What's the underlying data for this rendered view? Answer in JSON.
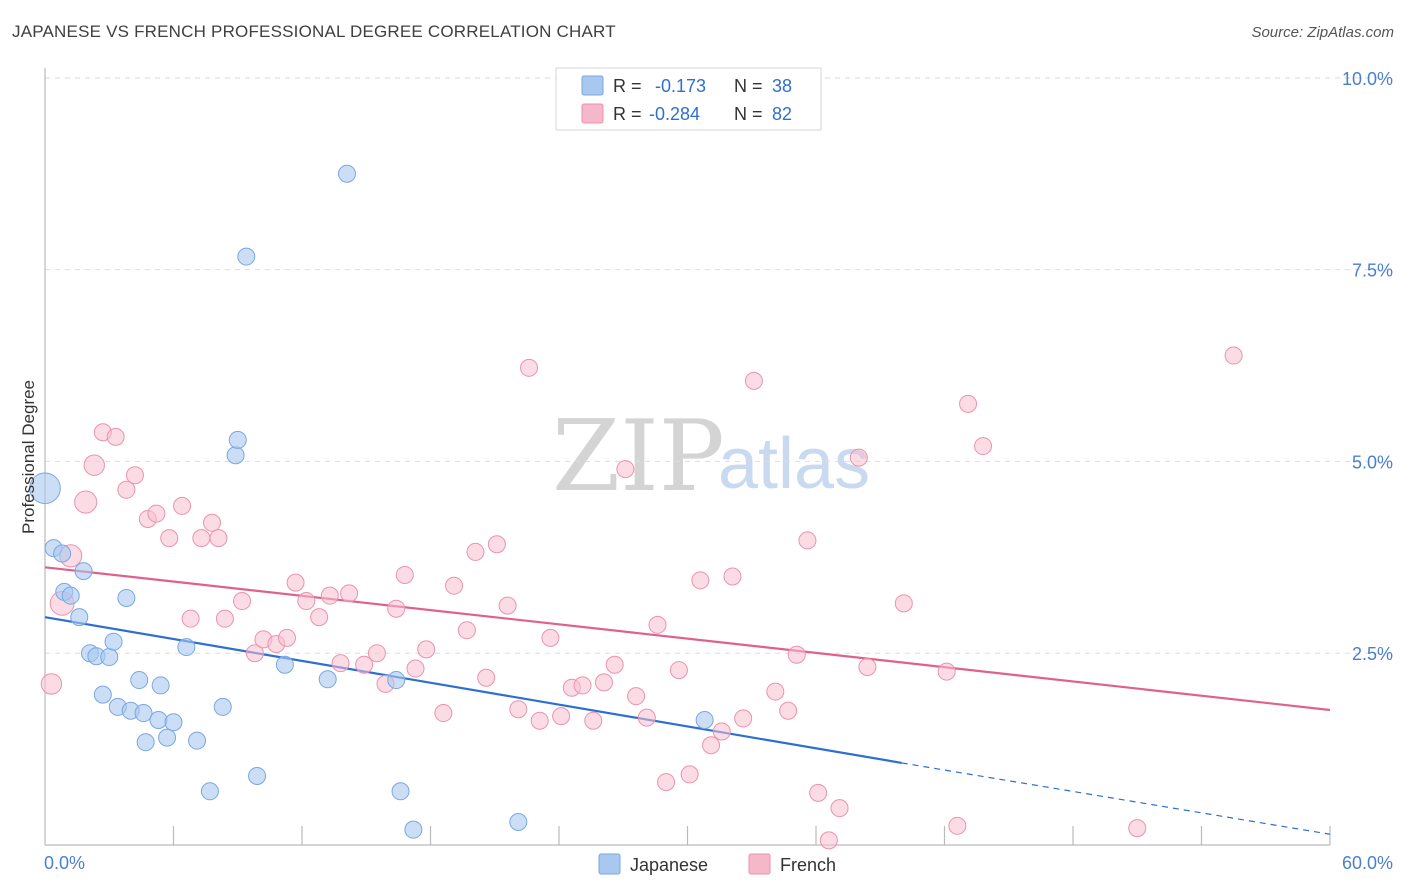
{
  "header": {
    "title": "JAPANESE VS FRENCH PROFESSIONAL DEGREE CORRELATION CHART",
    "source": "Source: ZipAtlas.com"
  },
  "watermark": {
    "part1": "ZIP",
    "part2": "atlas"
  },
  "legend": {
    "rows": [
      {
        "r_label": "R =",
        "r_value": "-0.173",
        "n_label": "N =",
        "n_value": "38",
        "color": "#a9c8f0"
      },
      {
        "r_label": "R =",
        "r_value": "-0.284",
        "n_label": "N =",
        "n_value": "82",
        "color": "#f5b8cb"
      }
    ]
  },
  "colors": {
    "japanese_fill": "#a9c8f0",
    "japanese_stroke": "#7aa7e0",
    "japanese_line": "#2c6fd1",
    "french_fill": "#f7bfd0",
    "french_stroke": "#eb92b0",
    "french_line": "#e0608d",
    "tick_text": "#4a7fd0",
    "grid": "#dddddd"
  },
  "chart_data": {
    "type": "scatter",
    "title": "JAPANESE VS FRENCH PROFESSIONAL DEGREE CORRELATION CHART",
    "xlabel": "",
    "ylabel": "Professional Degree",
    "xlim": [
      0,
      60
    ],
    "ylim": [
      0,
      10.5
    ],
    "x_tick_labels": [
      "0.0%",
      "60.0%"
    ],
    "y_ticks": [
      2.5,
      5.0,
      7.5,
      10.0
    ],
    "y_tick_labels": [
      "2.5%",
      "5.0%",
      "7.5%",
      "10.0%"
    ],
    "grid": true,
    "legend_position": "top-center",
    "series": [
      {
        "name": "Japanese",
        "r": -0.173,
        "n": 38,
        "trend": {
          "x0": 0,
          "y0": 2.97,
          "x1_solid": 40,
          "y1_solid": 1.07,
          "x1_dashed": 60,
          "y1_dashed": 0.14
        },
        "points": [
          [
            0,
            4.65,
            18
          ],
          [
            0.4,
            3.87,
            10
          ],
          [
            0.8,
            3.8,
            10
          ],
          [
            0.9,
            3.3,
            10
          ],
          [
            1.2,
            3.25,
            10
          ],
          [
            1.6,
            2.97,
            10
          ],
          [
            1.8,
            3.57,
            10
          ],
          [
            2.1,
            2.5,
            10
          ],
          [
            2.4,
            2.46,
            10
          ],
          [
            2.7,
            1.96,
            10
          ],
          [
            3.0,
            2.45,
            10
          ],
          [
            3.2,
            2.65,
            10
          ],
          [
            3.4,
            1.8,
            10
          ],
          [
            3.8,
            3.22,
            10
          ],
          [
            4.0,
            1.75,
            10
          ],
          [
            4.4,
            2.15,
            10
          ],
          [
            4.6,
            1.72,
            10
          ],
          [
            4.7,
            1.34,
            10
          ],
          [
            5.3,
            1.63,
            10
          ],
          [
            5.4,
            2.08,
            10
          ],
          [
            5.7,
            1.4,
            10
          ],
          [
            6.0,
            1.6,
            10
          ],
          [
            6.6,
            2.58,
            10
          ],
          [
            7.1,
            1.36,
            10
          ],
          [
            7.7,
            0.7,
            10
          ],
          [
            8.3,
            1.8,
            10
          ],
          [
            8.9,
            5.08,
            10
          ],
          [
            9.0,
            5.28,
            10
          ],
          [
            9.4,
            7.67,
            10
          ],
          [
            9.9,
            0.9,
            10
          ],
          [
            11.2,
            2.35,
            10
          ],
          [
            13.2,
            2.16,
            10
          ],
          [
            14.1,
            8.75,
            10
          ],
          [
            16.4,
            2.15,
            10
          ],
          [
            16.6,
            0.7,
            10
          ],
          [
            17.2,
            0.2,
            10
          ],
          [
            22.1,
            0.3,
            10
          ],
          [
            30.8,
            1.63,
            10
          ]
        ]
      },
      {
        "name": "French",
        "r": -0.284,
        "n": 82,
        "trend": {
          "x0": 0,
          "y0": 3.62,
          "x1": 60,
          "y1": 1.76
        },
        "points": [
          [
            0.3,
            2.1,
            12
          ],
          [
            0.8,
            3.15,
            14
          ],
          [
            1.2,
            3.77,
            13
          ],
          [
            1.9,
            4.47,
            13
          ],
          [
            2.3,
            4.95,
            12
          ],
          [
            2.7,
            5.38,
            10
          ],
          [
            3.3,
            5.32,
            10
          ],
          [
            3.8,
            4.63,
            10
          ],
          [
            4.2,
            4.82,
            10
          ],
          [
            4.8,
            4.25,
            10
          ],
          [
            5.2,
            4.32,
            10
          ],
          [
            5.8,
            4.0,
            10
          ],
          [
            6.4,
            4.42,
            10
          ],
          [
            6.8,
            2.95,
            10
          ],
          [
            7.3,
            4.0,
            10
          ],
          [
            7.8,
            4.2,
            10
          ],
          [
            8.1,
            4.0,
            10
          ],
          [
            8.4,
            2.95,
            10
          ],
          [
            9.2,
            3.18,
            10
          ],
          [
            9.8,
            2.5,
            10
          ],
          [
            10.2,
            2.68,
            10
          ],
          [
            10.8,
            2.62,
            10
          ],
          [
            11.3,
            2.7,
            10
          ],
          [
            11.7,
            3.42,
            10
          ],
          [
            12.2,
            3.18,
            10
          ],
          [
            12.8,
            2.97,
            10
          ],
          [
            13.3,
            3.25,
            10
          ],
          [
            13.8,
            2.37,
            10
          ],
          [
            14.2,
            3.28,
            10
          ],
          [
            14.9,
            2.35,
            10
          ],
          [
            15.5,
            2.5,
            10
          ],
          [
            15.9,
            2.1,
            10
          ],
          [
            16.4,
            3.08,
            10
          ],
          [
            16.8,
            3.52,
            10
          ],
          [
            17.3,
            2.3,
            10
          ],
          [
            17.8,
            2.55,
            10
          ],
          [
            18.6,
            1.72,
            10
          ],
          [
            19.1,
            3.38,
            10
          ],
          [
            19.7,
            2.8,
            10
          ],
          [
            20.1,
            3.82,
            10
          ],
          [
            20.6,
            2.18,
            10
          ],
          [
            21.1,
            3.92,
            10
          ],
          [
            21.6,
            3.12,
            10
          ],
          [
            22.1,
            1.77,
            10
          ],
          [
            22.6,
            6.22,
            10
          ],
          [
            23.1,
            1.62,
            10
          ],
          [
            23.6,
            2.7,
            10
          ],
          [
            24.1,
            1.68,
            10
          ],
          [
            24.6,
            2.05,
            10
          ],
          [
            25.1,
            2.08,
            10
          ],
          [
            25.6,
            1.62,
            10
          ],
          [
            26.1,
            2.12,
            10
          ],
          [
            26.6,
            2.35,
            10
          ],
          [
            27.1,
            4.9,
            10
          ],
          [
            27.6,
            1.94,
            10
          ],
          [
            28.1,
            1.66,
            10
          ],
          [
            28.6,
            2.87,
            10
          ],
          [
            29.0,
            0.82,
            10
          ],
          [
            29.6,
            2.28,
            10
          ],
          [
            30.1,
            0.92,
            10
          ],
          [
            30.6,
            3.45,
            10
          ],
          [
            31.1,
            1.3,
            10
          ],
          [
            31.6,
            1.48,
            10
          ],
          [
            32.1,
            3.5,
            10
          ],
          [
            32.6,
            1.65,
            10
          ],
          [
            33.1,
            6.05,
            10
          ],
          [
            34.1,
            2.0,
            10
          ],
          [
            34.7,
            1.75,
            10
          ],
          [
            35.1,
            2.48,
            10
          ],
          [
            35.6,
            3.97,
            10
          ],
          [
            36.1,
            0.68,
            10
          ],
          [
            36.6,
            0.06,
            10
          ],
          [
            37.1,
            0.48,
            10
          ],
          [
            38.0,
            5.05,
            10
          ],
          [
            38.4,
            2.32,
            10
          ],
          [
            40.1,
            3.15,
            10
          ],
          [
            42.1,
            2.26,
            10
          ],
          [
            42.6,
            0.25,
            10
          ],
          [
            43.1,
            5.75,
            10
          ],
          [
            43.8,
            5.2,
            10
          ],
          [
            51.0,
            0.22,
            10
          ],
          [
            55.5,
            6.38,
            10
          ]
        ]
      }
    ]
  },
  "bottom_legend": [
    {
      "label": "Japanese",
      "color": "#a9c8f0"
    },
    {
      "label": "French",
      "color": "#f5b8cb"
    }
  ]
}
